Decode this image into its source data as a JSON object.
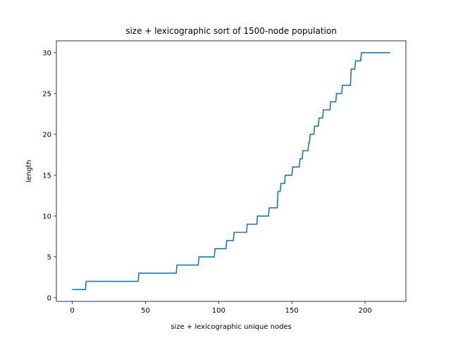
{
  "chart_data": {
    "type": "line",
    "title": "size + lexicographic sort of 1500-node population",
    "xlabel": "size + lexicographic unique nodes",
    "ylabel": "length",
    "xlim": [
      -10.85,
      227.85
    ],
    "ylim": [
      -0.45,
      31.45
    ],
    "xticks": [
      0,
      50,
      100,
      150,
      200
    ],
    "yticks": [
      0,
      5,
      10,
      15,
      20,
      25,
      30
    ],
    "grid": false,
    "color": "#1f77b4",
    "series": [
      {
        "x": [
          0,
          9,
          9.5,
          45,
          45.5,
          71,
          71.5,
          86,
          86.5,
          97,
          97.5,
          105,
          105.5,
          110,
          110.5,
          119,
          119.5,
          126,
          126.5,
          134,
          134.5,
          140,
          140.5,
          142,
          142.5,
          145,
          145.5,
          150,
          150.5,
          155,
          155.5,
          157,
          157.5,
          161,
          161.5,
          162,
          162.5,
          165,
          165.5,
          168,
          168.5,
          171,
          171.5,
          176,
          176.5,
          180,
          180.5,
          184,
          184.5,
          190,
          190.5,
          193,
          193.5,
          197,
          197.5,
          202,
          202.5,
          205,
          205.5,
          217
        ],
        "y": [
          1,
          1,
          2,
          2,
          3,
          3,
          4,
          4,
          5,
          5,
          6,
          6,
          7,
          7,
          8,
          8,
          9,
          9,
          10,
          10,
          11,
          11,
          13,
          13,
          14,
          14,
          15,
          15,
          16,
          16,
          17,
          17,
          18,
          18,
          19,
          19,
          20,
          20,
          21,
          21,
          22,
          22,
          23,
          23,
          24,
          24,
          25,
          25,
          26,
          26,
          28,
          28,
          29,
          29,
          30,
          30,
          30,
          30,
          30,
          30
        ]
      }
    ]
  }
}
